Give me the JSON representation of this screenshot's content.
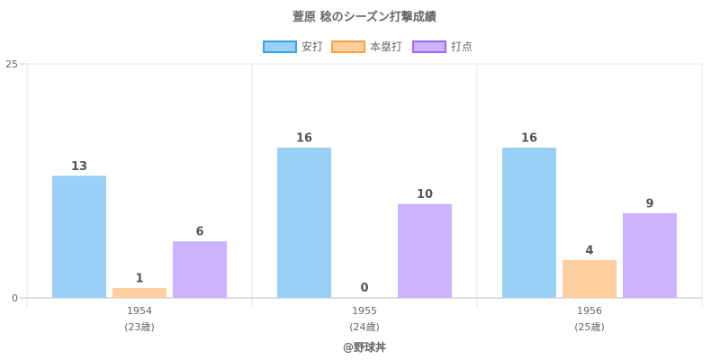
{
  "chart_data": {
    "type": "bar",
    "title": "萱原 稔のシーズン打撃成績",
    "categories": [
      "1954",
      "1955",
      "1956"
    ],
    "category_sublabels": [
      "(23歳)",
      "(24歳)",
      "(25歳)"
    ],
    "series": [
      {
        "name": "安打",
        "values": [
          13,
          16,
          16
        ],
        "fill": "#9ad0f5",
        "border": "#36a2eb"
      },
      {
        "name": "本塁打",
        "values": [
          1,
          0,
          4
        ],
        "fill": "#ffcf9f",
        "border": "#ff9f40"
      },
      {
        "name": "打点",
        "values": [
          6,
          10,
          9
        ],
        "fill": "#ccb2ff",
        "border": "#9966ff"
      }
    ],
    "ylim": [
      0,
      25
    ],
    "y_ticks": [
      0,
      25
    ],
    "grid": true,
    "legend_position": "top",
    "data_labels": true
  },
  "footer": {
    "credit": "@野球丼"
  }
}
